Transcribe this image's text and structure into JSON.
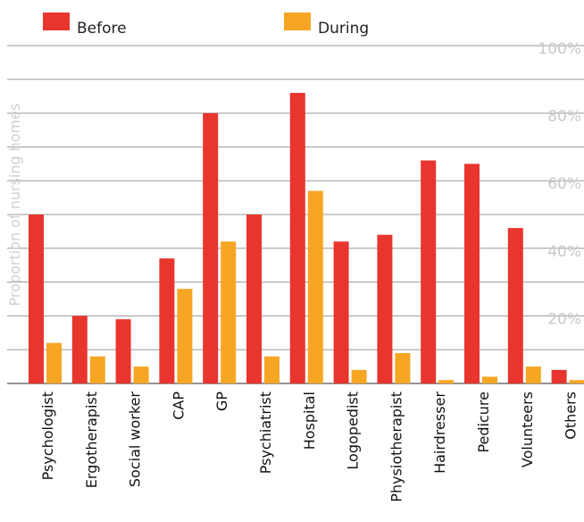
{
  "chart_data": {
    "type": "bar",
    "ylabel": "Proportion of nursing homes",
    "ylim": [
      0,
      100
    ],
    "yticks": [
      "20%",
      "40%",
      "60%",
      "80%",
      "100%"
    ],
    "grid": true,
    "legend_position": "top",
    "categories": [
      "Psychologist",
      "Ergotherapist",
      "Social worker",
      "CAP",
      "GP",
      "Psychiatrist",
      "Hospital",
      "Logopedist",
      "Physiotherapist",
      "Hairdresser",
      "Pedicure",
      "Volunteers",
      "Others"
    ],
    "series": [
      {
        "name": "Before",
        "color": "#e8352e",
        "values": [
          50,
          20,
          19,
          37,
          80,
          50,
          86,
          42,
          44,
          66,
          65,
          46,
          4
        ]
      },
      {
        "name": "During",
        "color": "#f6a623",
        "values": [
          12,
          8,
          5,
          28,
          42,
          8,
          57,
          4,
          9,
          1,
          2,
          5,
          1
        ]
      }
    ]
  }
}
